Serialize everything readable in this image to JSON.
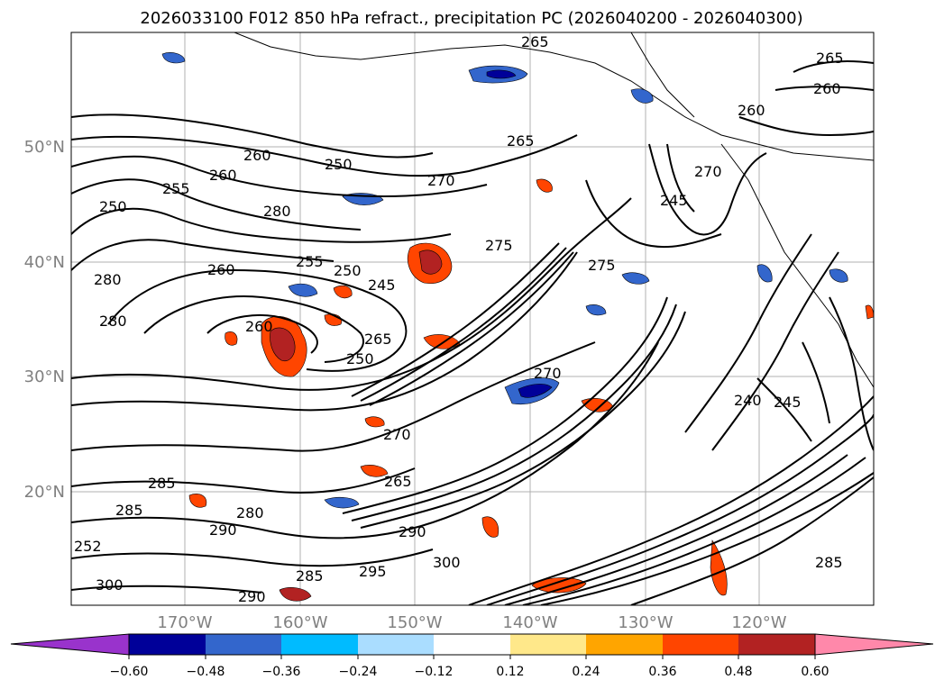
{
  "title": "2026033100 F012 850 hPa refract., precipitation PC (2026040200 - 2026040300)",
  "lat_labels": [
    "50°N",
    "40°N",
    "30°N",
    "20°N"
  ],
  "lon_labels": [
    "170°W",
    "160°W",
    "150°W",
    "140°W",
    "130°W",
    "120°W"
  ],
  "colorbar": {
    "colors": [
      "#9933cc",
      "#000099",
      "#3366cc",
      "#00bbff",
      "#aaddff",
      "#ffffff",
      "#ffe88a",
      "#ffa500",
      "#ff4500",
      "#b22222",
      "#ff88aa"
    ],
    "ticks": [
      "−0.60",
      "−0.48",
      "−0.36",
      "−0.24",
      "−0.12",
      "0.12",
      "0.24",
      "0.36",
      "0.48",
      "0.60"
    ]
  },
  "contour_labels": [
    "265",
    "265",
    "260",
    "260",
    "265",
    "250",
    "260",
    "270",
    "255",
    "260",
    "250",
    "280",
    "245",
    "270",
    "275",
    "260",
    "255",
    "250",
    "245",
    "280",
    "275",
    "280",
    "260",
    "265",
    "250",
    "270",
    "240",
    "245",
    "285",
    "270",
    "265",
    "285",
    "280",
    "290",
    "290",
    "300",
    "285",
    "300",
    "295",
    "290",
    "285",
    "252"
  ]
}
